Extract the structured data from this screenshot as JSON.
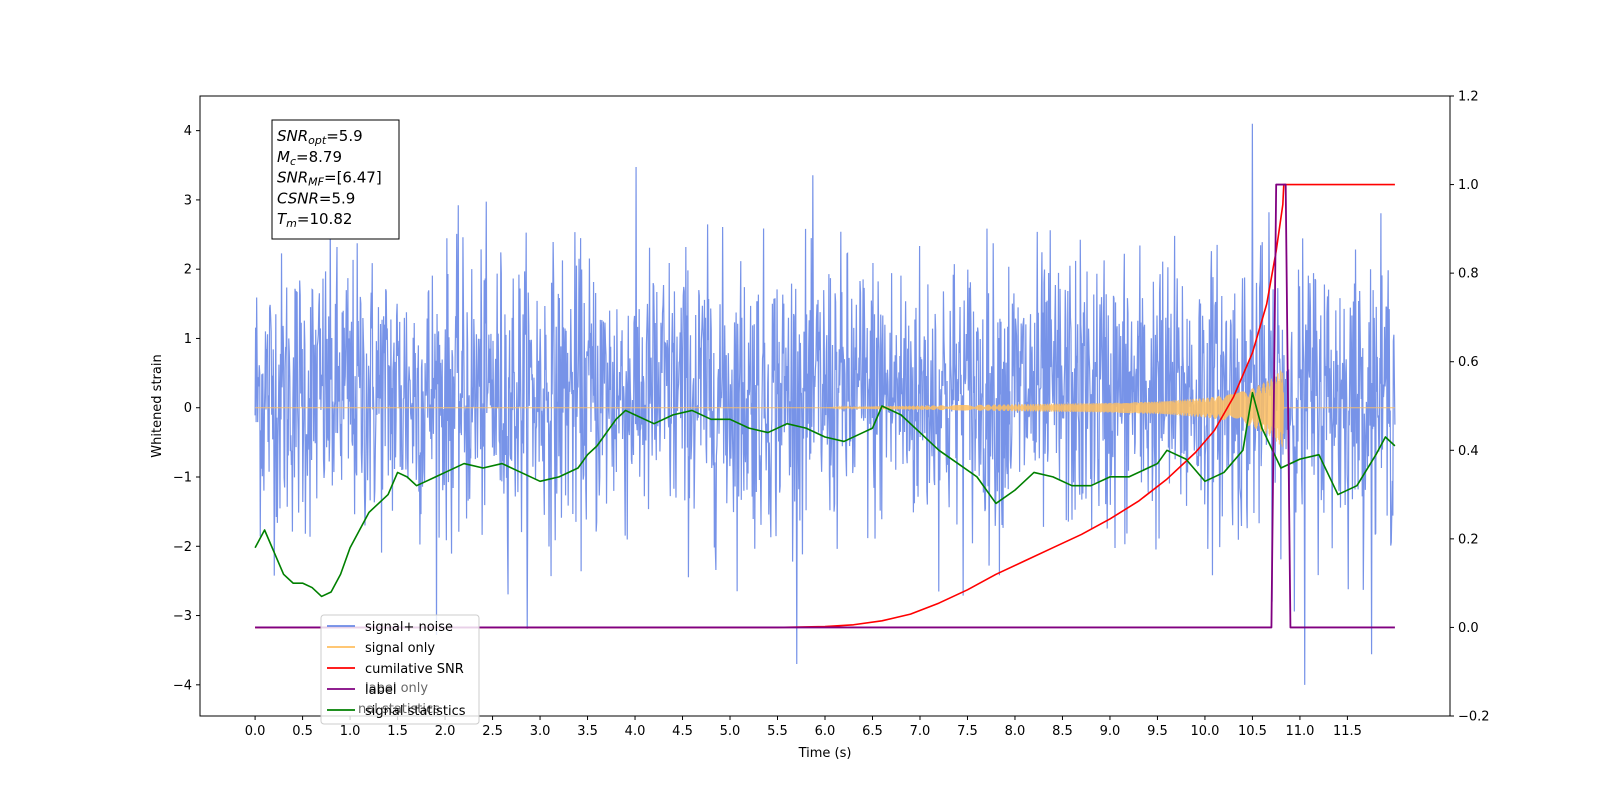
{
  "chart_data": {
    "type": "line",
    "xlabel": "Time (s)",
    "ylabel_left": "Whitened strain",
    "ylabel_right": "",
    "xlim": [
      -0.58,
      12.58
    ],
    "ylim_left": [
      -4.45,
      4.5
    ],
    "ylim_right": [
      -0.2,
      1.2
    ],
    "x_ticks": [
      0.0,
      0.5,
      1.0,
      1.5,
      2.0,
      2.5,
      3.0,
      3.5,
      4.0,
      4.5,
      5.0,
      5.5,
      6.0,
      6.5,
      7.0,
      7.5,
      8.0,
      8.5,
      9.0,
      9.5,
      10.0,
      10.5,
      11.0,
      11.5
    ],
    "x_tick_labels": [
      "0.0",
      "0.5",
      "1.0",
      "1.5",
      "2.0",
      "2.5",
      "3.0",
      "3.5",
      "4.0",
      "4.5",
      "5.0",
      "5.5",
      "6.0",
      "6.5",
      "7.0",
      "7.5",
      "8.0",
      "8.5",
      "9.0",
      "9.5",
      "10.0",
      "10.5",
      "11.0",
      "11.5"
    ],
    "y_left_ticks": [
      -4,
      -3,
      -2,
      -1,
      0,
      1,
      2,
      3,
      4
    ],
    "y_left_tick_labels": [
      "−4",
      "−3",
      "−2",
      "−1",
      "0",
      "1",
      "2",
      "3",
      "4"
    ],
    "y_right_ticks": [
      -0.2,
      0.0,
      0.2,
      0.4,
      0.6,
      0.8,
      1.0,
      1.2
    ],
    "y_right_tick_labels": [
      "−0.2",
      "0.0",
      "0.2",
      "0.4",
      "0.6",
      "0.8",
      "1.0",
      "1.2"
    ],
    "grid": false,
    "legend_position": "lower-left",
    "legend": [
      {
        "label": "signal+ noise",
        "color": "#6b8ae6"
      },
      {
        "label": "signal only",
        "color": "#ffbf60"
      },
      {
        "label": "cumilative SNR",
        "color": "#ff0000"
      },
      {
        "label": "label",
        "color": "#800080"
      },
      {
        "label": "signal statistics",
        "color": "#008000"
      }
    ],
    "hidden_legend_text": [
      "label only",
      "nal statistics"
    ],
    "annotation": [
      {
        "main": "SNR",
        "sub": "opt",
        "rest": "=5.9"
      },
      {
        "main": "M",
        "sub": "c",
        "rest": "=8.79"
      },
      {
        "main": "SNR",
        "sub": "MF",
        "rest": "=[6.47]"
      },
      {
        "main": "CSNR",
        "sub": "",
        "rest": "=5.9"
      },
      {
        "main": "T",
        "sub": "m",
        "rest": "=10.82"
      }
    ],
    "series": [
      {
        "name": "signal+ noise",
        "axis": "left",
        "color": "#6b8ae6",
        "description": "noisy whitened strain, approx. mean 0.2, std 1.0, x from 0.0 to 12.0, peak 4.1 at x=10.5, min -4.0 at x=11.05",
        "x_range": [
          0.0,
          12.0
        ]
      },
      {
        "name": "signal only",
        "axis": "left",
        "color": "#ffbf60",
        "envelope": [
          [
            0.0,
            0.0
          ],
          [
            6.0,
            0.0
          ],
          [
            6.5,
            0.02
          ],
          [
            7.0,
            0.03
          ],
          [
            7.5,
            0.04
          ],
          [
            8.0,
            0.05
          ],
          [
            8.5,
            0.06
          ],
          [
            9.0,
            0.07
          ],
          [
            9.5,
            0.09
          ],
          [
            10.0,
            0.14
          ],
          [
            10.3,
            0.2
          ],
          [
            10.5,
            0.28
          ],
          [
            10.7,
            0.42
          ],
          [
            10.82,
            0.58
          ],
          [
            10.83,
            0.0
          ],
          [
            12.0,
            0.0
          ]
        ]
      },
      {
        "name": "cumilative SNR",
        "axis": "right",
        "color": "#ff0000",
        "x": [
          0.0,
          5.5,
          6.0,
          6.3,
          6.6,
          6.9,
          7.2,
          7.5,
          7.8,
          8.1,
          8.4,
          8.7,
          9.0,
          9.3,
          9.6,
          9.9,
          10.1,
          10.3,
          10.5,
          10.65,
          10.75,
          10.82,
          10.83,
          12.0
        ],
        "y": [
          0.0,
          0.0,
          0.002,
          0.006,
          0.015,
          0.03,
          0.055,
          0.085,
          0.12,
          0.15,
          0.18,
          0.21,
          0.245,
          0.285,
          0.335,
          0.395,
          0.445,
          0.52,
          0.62,
          0.73,
          0.85,
          0.955,
          1.0,
          1.0
        ]
      },
      {
        "name": "label",
        "axis": "right",
        "color": "#800080",
        "x": [
          0.0,
          10.7,
          10.75,
          10.85,
          10.9,
          12.0
        ],
        "y": [
          0.0,
          0.0,
          1.0,
          1.0,
          0.0,
          0.0
        ]
      },
      {
        "name": "signal statistics",
        "axis": "right",
        "color": "#008000",
        "x": [
          0.0,
          0.1,
          0.2,
          0.3,
          0.4,
          0.5,
          0.6,
          0.7,
          0.8,
          0.9,
          1.0,
          1.1,
          1.2,
          1.3,
          1.4,
          1.5,
          1.6,
          1.7,
          1.8,
          1.9,
          2.0,
          2.2,
          2.4,
          2.6,
          2.8,
          3.0,
          3.2,
          3.4,
          3.5,
          3.6,
          3.7,
          3.8,
          3.9,
          4.0,
          4.2,
          4.4,
          4.6,
          4.8,
          5.0,
          5.2,
          5.4,
          5.6,
          5.8,
          6.0,
          6.2,
          6.4,
          6.5,
          6.6,
          6.8,
          7.0,
          7.2,
          7.4,
          7.6,
          7.8,
          8.0,
          8.2,
          8.4,
          8.6,
          8.8,
          9.0,
          9.2,
          9.4,
          9.5,
          9.6,
          9.8,
          10.0,
          10.2,
          10.4,
          10.5,
          10.6,
          10.8,
          11.0,
          11.2,
          11.4,
          11.6,
          11.8,
          11.9,
          12.0
        ],
        "y": [
          0.18,
          0.22,
          0.17,
          0.12,
          0.1,
          0.1,
          0.09,
          0.07,
          0.08,
          0.12,
          0.18,
          0.22,
          0.26,
          0.28,
          0.3,
          0.35,
          0.34,
          0.32,
          0.33,
          0.34,
          0.35,
          0.37,
          0.36,
          0.37,
          0.35,
          0.33,
          0.34,
          0.36,
          0.39,
          0.41,
          0.44,
          0.47,
          0.49,
          0.48,
          0.46,
          0.48,
          0.49,
          0.47,
          0.47,
          0.45,
          0.44,
          0.46,
          0.45,
          0.43,
          0.42,
          0.44,
          0.45,
          0.5,
          0.48,
          0.44,
          0.4,
          0.37,
          0.34,
          0.28,
          0.31,
          0.35,
          0.34,
          0.32,
          0.32,
          0.34,
          0.34,
          0.36,
          0.37,
          0.4,
          0.38,
          0.33,
          0.35,
          0.4,
          0.53,
          0.45,
          0.36,
          0.38,
          0.39,
          0.3,
          0.32,
          0.39,
          0.43,
          0.41
        ]
      }
    ]
  }
}
